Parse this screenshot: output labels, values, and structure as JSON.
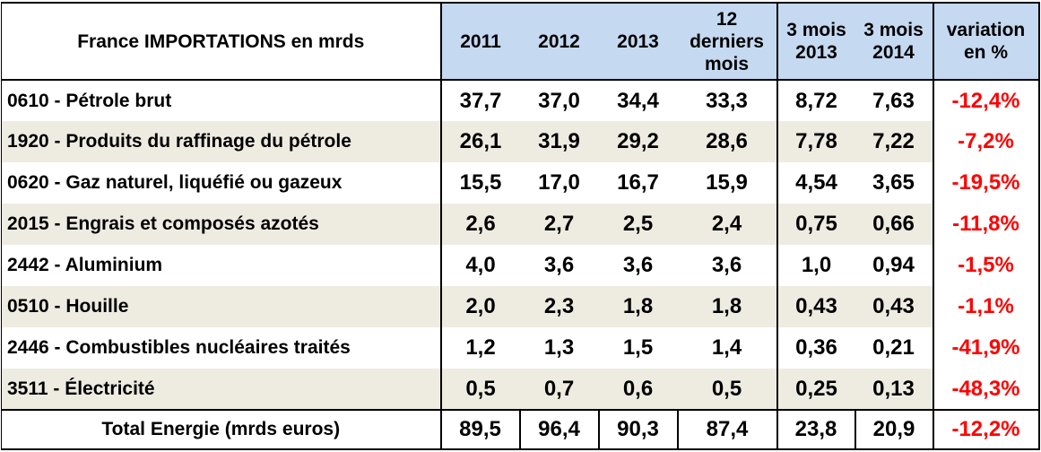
{
  "header": {
    "title": "France IMPORTATIONS en mrds",
    "years": [
      "2011",
      "2012",
      "2013"
    ],
    "last12_line1": "12",
    "last12_line2": "derniers",
    "last12_line3": "mois",
    "q2013_line1": "3 mois",
    "q2013_line2": "2013",
    "q2014_line1": "3 mois",
    "q2014_line2": "2014",
    "variation_line1": "variation",
    "variation_line2": "en %"
  },
  "rows": [
    {
      "label": "0610 - Pétrole brut",
      "y2011": "37,7",
      "y2012": "37,0",
      "y2013": "34,4",
      "last12": "33,3",
      "q2013": "8,72",
      "q2014": "7,63",
      "variation": "-12,4%"
    },
    {
      "label": "1920 - Produits du raffinage du pétrole",
      "y2011": "26,1",
      "y2012": "31,9",
      "y2013": "29,2",
      "last12": "28,6",
      "q2013": "7,78",
      "q2014": "7,22",
      "variation": "-7,2%"
    },
    {
      "label": "0620 - Gaz naturel, liquéfié ou gazeux",
      "y2011": "15,5",
      "y2012": "17,0",
      "y2013": "16,7",
      "last12": "15,9",
      "q2013": "4,54",
      "q2014": "3,65",
      "variation": "-19,5%"
    },
    {
      "label": "2015 - Engrais et composés azotés",
      "y2011": "2,6",
      "y2012": "2,7",
      "y2013": "2,5",
      "last12": "2,4",
      "q2013": "0,75",
      "q2014": "0,66",
      "variation": "-11,8%"
    },
    {
      "label": "2442 - Aluminium",
      "y2011": "4,0",
      "y2012": "3,6",
      "y2013": "3,6",
      "last12": "3,6",
      "q2013": "1,0",
      "q2014": "0,94",
      "variation": "-1,5%"
    },
    {
      "label": "0510 - Houille",
      "y2011": "2,0",
      "y2012": "2,3",
      "y2013": "1,8",
      "last12": "1,8",
      "q2013": "0,43",
      "q2014": "0,43",
      "variation": "-1,1%"
    },
    {
      "label": "2446 - Combustibles nucléaires traités",
      "y2011": "1,2",
      "y2012": "1,3",
      "y2013": "1,5",
      "last12": "1,4",
      "q2013": "0,36",
      "q2014": "0,21",
      "variation": "-41,9%"
    },
    {
      "label": "3511 - Électricité",
      "y2011": "0,5",
      "y2012": "0,7",
      "y2013": "0,6",
      "last12": "0,5",
      "q2013": "0,25",
      "q2014": "0,13",
      "variation": "-48,3%"
    }
  ],
  "total": {
    "label": "Total Energie (mrds euros)",
    "y2011": "89,5",
    "y2012": "96,4",
    "y2013": "90,3",
    "last12": "87,4",
    "q2013": "23,8",
    "q2014": "20,9",
    "variation": "-12,2%"
  },
  "colors": {
    "header_bg": "#c5d9f1",
    "row_shade": "#eeece1",
    "negative": "#ff0000"
  }
}
